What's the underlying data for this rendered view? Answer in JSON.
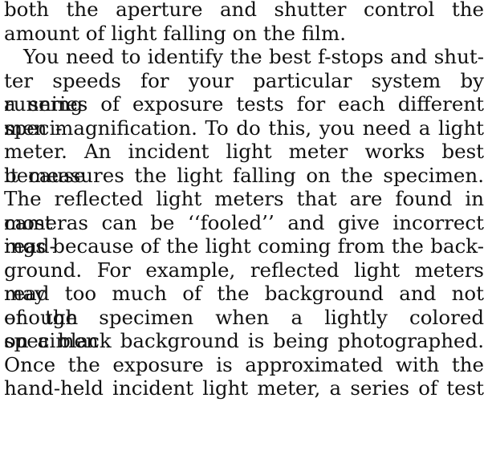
{
  "document": {
    "paragraphs": [
      {
        "id": "p1",
        "lines": [
          "both the aperture and shutter control the",
          "amount of light falling on the film."
        ]
      },
      {
        "id": "p2",
        "lines": [
          "You need to identify the best f-stops and shut-",
          "ter speeds for your particular system by running",
          "a series of exposure tests for each different speci-",
          "men magnification. To do this, you need a light",
          "meter. An incident light meter works best because",
          "it measures the light falling on the specimen.",
          "The reflected light meters that are found in most",
          "cameras can be ‘‘fooled’’ and give incorrect read-",
          "ings because of the light coming from the back-",
          "ground. For example, reflected light meters may",
          "read too much of the background and not enough",
          "of the specimen when a lightly colored specimen",
          "on a black background is being photographed.",
          "Once the exposure is approximated with the",
          "hand-held incident light meter, a series of test"
        ]
      }
    ]
  }
}
